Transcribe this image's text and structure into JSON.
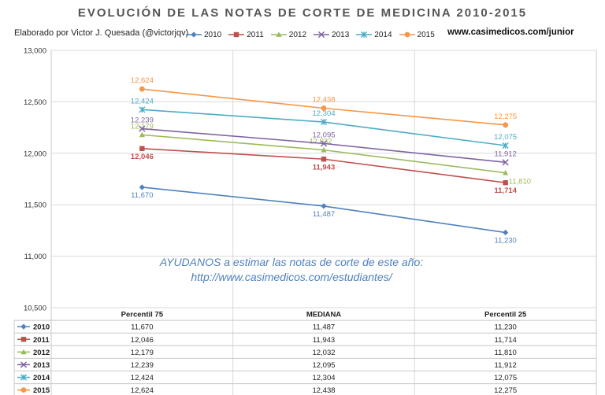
{
  "title": "EVOLUCIÓN DE LAS NOTAS DE CORTE DE MEDICINA 2010-2015",
  "author": "Elaborado por Victor J. Quesada (@victorjqv)",
  "website": "www.casimedicos.com/junior",
  "promo": {
    "line1": "AYUDANOS a estimar las notas de corte de este año:",
    "line2": "http://www.casimedicos.com/estudiantes/"
  },
  "chart_data": {
    "type": "line",
    "title": "EVOLUCIÓN DE LAS NOTAS DE CORTE DE MEDICINA 2010-2015",
    "categories": [
      "Percentil 75",
      "MEDIANA",
      "Percentil 25"
    ],
    "ylim": [
      10500,
      13000
    ],
    "yticks": [
      10500,
      11000,
      11500,
      12000,
      12500,
      13000
    ],
    "ytick_labels": [
      "10,500",
      "11,000",
      "11,500",
      "12,000",
      "12,500",
      "13,000"
    ],
    "grid": true,
    "legend_position": "top",
    "data_table": true,
    "series": [
      {
        "name": "2010",
        "color": "#4f81bd",
        "marker": "diamond",
        "values": [
          11670,
          11487,
          11230
        ],
        "labels": [
          "11,670",
          "11,487",
          "11,230"
        ]
      },
      {
        "name": "2011",
        "color": "#c0504d",
        "marker": "square",
        "values": [
          12046,
          11943,
          11714
        ],
        "labels": [
          "12,046",
          "11,943",
          "11,714"
        ]
      },
      {
        "name": "2012",
        "color": "#9bbb59",
        "marker": "triangle",
        "values": [
          12179,
          12032,
          11810
        ],
        "labels": [
          "12,179",
          "12,032",
          "11,810"
        ]
      },
      {
        "name": "2013",
        "color": "#8064a2",
        "marker": "x",
        "values": [
          12239,
          12095,
          11912
        ],
        "labels": [
          "12,239",
          "12,095",
          "11,912"
        ]
      },
      {
        "name": "2014",
        "color": "#4bacc6",
        "marker": "star",
        "values": [
          12424,
          12304,
          12075
        ],
        "labels": [
          "12,424",
          "12,304",
          "12,075"
        ]
      },
      {
        "name": "2015",
        "color": "#f79646",
        "marker": "circle",
        "values": [
          12624,
          12438,
          12275
        ],
        "labels": [
          "12,624",
          "12,438",
          "12,275"
        ]
      }
    ]
  }
}
